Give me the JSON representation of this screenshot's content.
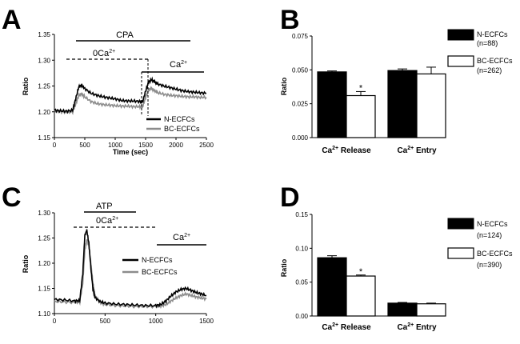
{
  "figure": {
    "panels": {
      "A": "A",
      "B": "B",
      "C": "C",
      "D": "D"
    },
    "colors": {
      "n_ecfc": "#000000",
      "bc_ecfc": "#8c8c8c",
      "bar_n": "#000000",
      "bar_bc": "#ffffff"
    }
  },
  "chart_data": [
    {
      "id": "A",
      "type": "line",
      "xlabel": "Time (sec)",
      "ylabel": "Ratio",
      "xlim": [
        0,
        2500
      ],
      "ylim": [
        1.15,
        1.35
      ],
      "xticks": [
        "0",
        "500",
        "1000",
        "1500",
        "2000",
        "2500"
      ],
      "yticks": [
        "1.15",
        "1.20",
        "1.25",
        "1.30",
        "1.35"
      ],
      "annotations": {
        "cpa": "CPA",
        "zero_ca_base": "0Ca",
        "zero_ca_sup": "2+",
        "ca_base": "Ca",
        "ca_sup": "2+"
      },
      "series": [
        {
          "name": "N-ECFCs",
          "x": [
            0,
            100,
            200,
            300,
            350,
            400,
            450,
            500,
            600,
            700,
            800,
            900,
            1000,
            1100,
            1200,
            1300,
            1400,
            1450,
            1500,
            1550,
            1600,
            1650,
            1700,
            1800,
            1900,
            2000,
            2100,
            2200,
            2300,
            2400,
            2500
          ],
          "values": [
            1.203,
            1.202,
            1.201,
            1.203,
            1.225,
            1.248,
            1.252,
            1.245,
            1.236,
            1.232,
            1.229,
            1.227,
            1.225,
            1.222,
            1.221,
            1.221,
            1.22,
            1.219,
            1.24,
            1.258,
            1.262,
            1.258,
            1.254,
            1.25,
            1.247,
            1.244,
            1.241,
            1.239,
            1.238,
            1.237,
            1.236
          ]
        },
        {
          "name": "BC-ECFCs",
          "x": [
            0,
            100,
            200,
            300,
            350,
            400,
            450,
            500,
            600,
            700,
            800,
            900,
            1000,
            1100,
            1200,
            1300,
            1400,
            1450,
            1500,
            1550,
            1600,
            1650,
            1700,
            1800,
            1900,
            2000,
            2100,
            2200,
            2300,
            2400,
            2500
          ],
          "values": [
            1.201,
            1.2,
            1.199,
            1.2,
            1.215,
            1.232,
            1.235,
            1.229,
            1.22,
            1.216,
            1.214,
            1.213,
            1.212,
            1.211,
            1.211,
            1.21,
            1.21,
            1.209,
            1.228,
            1.243,
            1.245,
            1.241,
            1.237,
            1.234,
            1.232,
            1.231,
            1.23,
            1.229,
            1.229,
            1.228,
            1.228
          ]
        }
      ]
    },
    {
      "id": "B",
      "type": "bar",
      "ylabel": "Ratio",
      "ylim": [
        0,
        0.075
      ],
      "yticks": [
        "0.000",
        "0.025",
        "0.050",
        "0.075"
      ],
      "categories": [
        {
          "base": "Ca",
          "sup": "2+",
          "rest": " Release"
        },
        {
          "base": "Ca",
          "sup": "2+",
          "rest": " Entry"
        }
      ],
      "series": [
        {
          "name": "N-ECFCs",
          "n": "(n=88)",
          "values": [
            0.0485,
            0.0495
          ],
          "errors": [
            0.0007,
            0.0012
          ]
        },
        {
          "name": "BC-ECFCs",
          "n": "(n=262)",
          "values": [
            0.031,
            0.047
          ],
          "errors": [
            0.003,
            0.005
          ]
        }
      ],
      "significance": [
        "*",
        ""
      ]
    },
    {
      "id": "C",
      "type": "line",
      "xlabel": "",
      "ylabel": "Ratio",
      "xlim": [
        0,
        1500
      ],
      "ylim": [
        1.1,
        1.3
      ],
      "xticks": [
        "0",
        "500",
        "1000",
        "1500"
      ],
      "yticks": [
        "1.10",
        "1.15",
        "1.20",
        "1.25",
        "1.30"
      ],
      "annotations": {
        "atp": "ATP",
        "zero_ca_base": "0Ca",
        "zero_ca_sup": "2+",
        "ca_base": "Ca",
        "ca_sup": "2+"
      },
      "series": [
        {
          "name": "N-ECFCs",
          "x": [
            0,
            100,
            200,
            250,
            280,
            300,
            320,
            340,
            360,
            380,
            400,
            450,
            500,
            600,
            700,
            800,
            900,
            1000,
            1050,
            1100,
            1150,
            1200,
            1250,
            1300,
            1350,
            1400,
            1450,
            1500
          ],
          "values": [
            1.128,
            1.127,
            1.125,
            1.126,
            1.18,
            1.255,
            1.265,
            1.24,
            1.19,
            1.15,
            1.132,
            1.124,
            1.121,
            1.119,
            1.118,
            1.117,
            1.116,
            1.116,
            1.118,
            1.125,
            1.135,
            1.143,
            1.148,
            1.15,
            1.146,
            1.142,
            1.139,
            1.136
          ]
        },
        {
          "name": "BC-ECFCs",
          "x": [
            0,
            100,
            200,
            250,
            280,
            300,
            320,
            340,
            360,
            380,
            400,
            450,
            500,
            600,
            700,
            800,
            900,
            1000,
            1050,
            1100,
            1150,
            1200,
            1250,
            1300,
            1350,
            1400,
            1450,
            1500
          ],
          "values": [
            1.124,
            1.123,
            1.122,
            1.123,
            1.16,
            1.225,
            1.245,
            1.235,
            1.2,
            1.16,
            1.136,
            1.122,
            1.118,
            1.116,
            1.115,
            1.114,
            1.114,
            1.114,
            1.115,
            1.118,
            1.125,
            1.131,
            1.136,
            1.139,
            1.136,
            1.133,
            1.131,
            1.129
          ]
        }
      ]
    },
    {
      "id": "D",
      "type": "bar",
      "ylabel": "Ratio",
      "ylim": [
        0,
        0.15
      ],
      "yticks": [
        "0.00",
        "0.05",
        "0.10",
        "0.15"
      ],
      "categories": [
        {
          "base": "Ca",
          "sup": "2+",
          "rest": " Release"
        },
        {
          "base": "Ca",
          "sup": "2+",
          "rest": " Entry"
        }
      ],
      "series": [
        {
          "name": "N-ECFCs",
          "n": "(n=124)",
          "values": [
            0.086,
            0.019
          ],
          "errors": [
            0.003,
            0.001
          ]
        },
        {
          "name": "BC-ECFCs",
          "n": "(n=390)",
          "values": [
            0.059,
            0.018
          ],
          "errors": [
            0.0015,
            0.001
          ]
        }
      ],
      "significance": [
        "*",
        ""
      ]
    }
  ]
}
